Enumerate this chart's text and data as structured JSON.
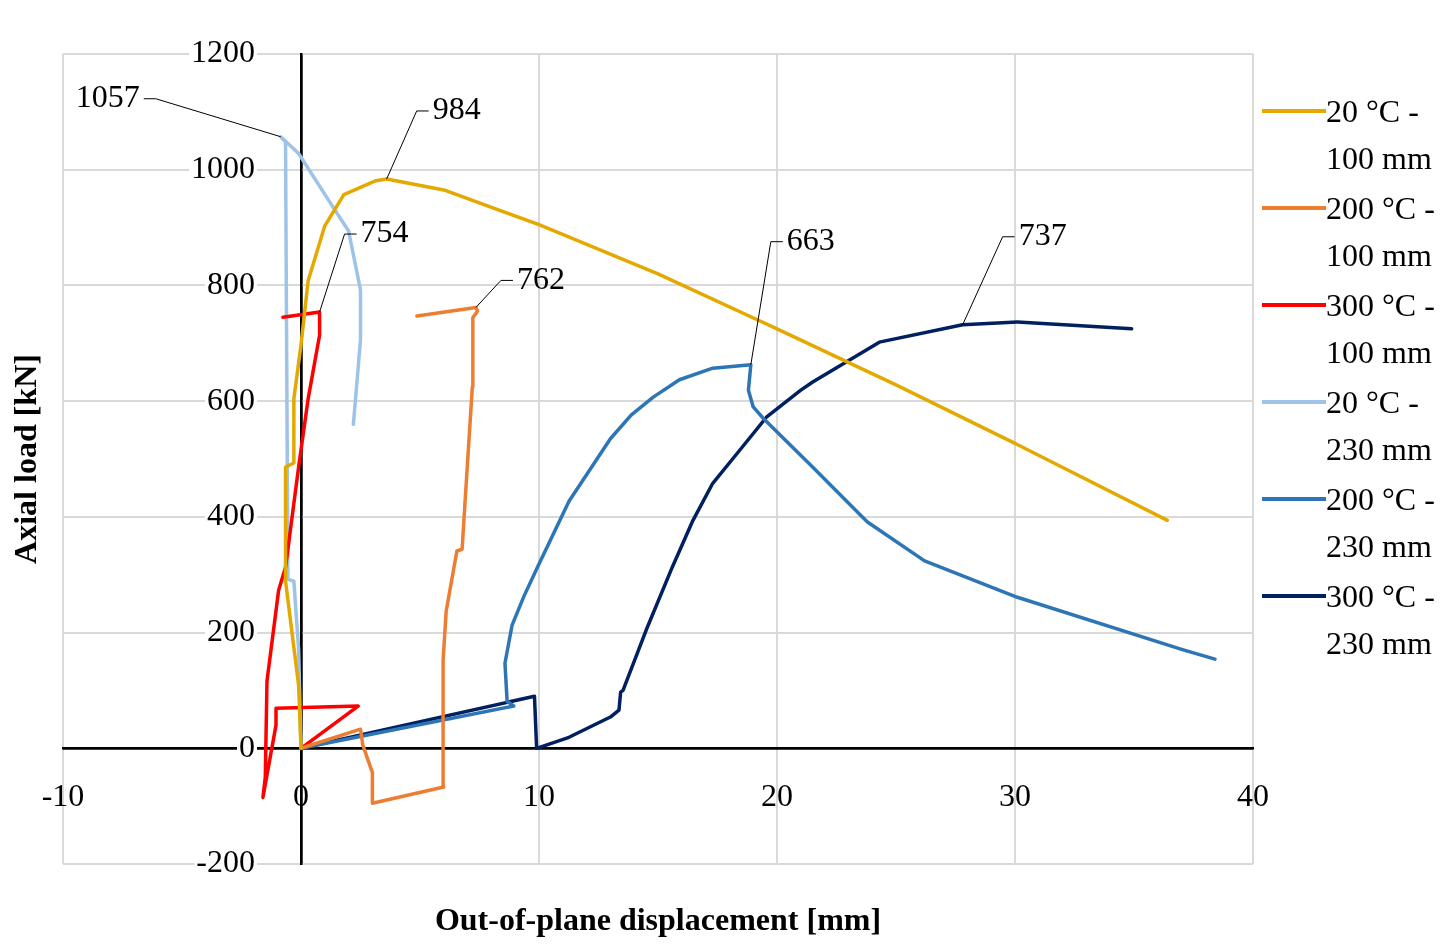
{
  "chart_data": {
    "type": "line",
    "xlabel": "Out-of-plane displacement [mm]",
    "ylabel": "Axial load [kN]",
    "xlim": [
      -10,
      40
    ],
    "xticks": [
      -10,
      0,
      10,
      20,
      30,
      40
    ],
    "ylim": [
      -200,
      1200
    ],
    "yticks": [
      -200,
      0,
      200,
      400,
      600,
      800,
      1000,
      1200
    ],
    "grid": true,
    "legend": "right",
    "marker": "none",
    "line_style": "solid",
    "series": [
      {
        "name": "20 °C - 100 mm",
        "color": "#e3a900",
        "x": [
          0,
          -0.1,
          -0.65,
          -0.65,
          -0.3,
          -0.3,
          0,
          0.3,
          1,
          1.8,
          3.15,
          3.6,
          6,
          10,
          15,
          20,
          25,
          30,
          36.4
        ],
        "values": [
          0,
          109,
          289,
          486,
          493,
          604,
          697,
          808,
          903,
          957,
          981,
          984,
          965,
          905,
          820,
          725,
          628,
          527,
          394
        ]
      },
      {
        "name": "200 °C - 100 mm",
        "color": "#ed7d31",
        "x": [
          0,
          2.5,
          2.6,
          3.0,
          3.0,
          6.0,
          5.97,
          6.1,
          6.55,
          6.77,
          6.85,
          7.2,
          7.22,
          7.42,
          7.35,
          4.87
        ],
        "values": [
          0,
          33,
          5,
          -42,
          -95,
          -67,
          152,
          237,
          341,
          344,
          398,
          625,
          744,
          756,
          762,
          747
        ]
      },
      {
        "name": "300 °C - 100 mm",
        "color": "#ff0000",
        "x": [
          0,
          2.4,
          -1.05,
          -1.05,
          -1.6,
          -1.5,
          -1.43,
          -0.94,
          -0.65,
          -0.1,
          0.3,
          0.78,
          0.78,
          -0.76
        ],
        "values": [
          0,
          73,
          69,
          40,
          -85,
          -50,
          116,
          273,
          313,
          486,
          604,
          714,
          754,
          745
        ]
      },
      {
        "name": "20 °C - 230 mm",
        "color": "#9dc3e6",
        "x": [
          0,
          -0.1,
          -0.3,
          -0.55,
          -0.65,
          -0.85,
          -0.1,
          1.26,
          2.0,
          2.5,
          2.5,
          2.2
        ],
        "values": [
          0,
          171,
          289,
          292,
          1048,
          1057,
          1028,
          941,
          894,
          792,
          706,
          560
        ]
      },
      {
        "name": "200 °C - 230 mm",
        "color": "#2e75b6",
        "x": [
          0,
          8.94,
          8.66,
          8.57,
          8.87,
          9.37,
          9.96,
          11.26,
          12.13,
          13.0,
          13.87,
          14.8,
          15.9,
          17.3,
          18.9,
          18.8,
          19.0,
          19.45,
          21.4,
          23.8,
          26.2,
          30.1,
          37,
          38.4
        ],
        "values": [
          0,
          73,
          81,
          147,
          213,
          263,
          315,
          427,
          481,
          535,
          576,
          607,
          637,
          657,
          663,
          619,
          590,
          569,
          490,
          391,
          324,
          261,
          171,
          154
        ]
      },
      {
        "name": "300 °C - 230 mm",
        "color": "#002060",
        "x": [
          0,
          9.81,
          9.9,
          11.26,
          13.0,
          13.36,
          13.43,
          13.53,
          14.5,
          15.6,
          16.47,
          17.3,
          18.45,
          19.57,
          21.0,
          21.5,
          24.3,
          27.8,
          30.1,
          34.9
        ],
        "values": [
          0,
          90,
          0,
          19,
          54,
          66,
          97,
          100,
          204,
          313,
          394,
          458,
          516,
          573,
          619,
          633,
          702,
          732,
          737,
          725
        ]
      }
    ],
    "annotations": [
      {
        "text": "1057",
        "x": -0.85,
        "y": 1057
      },
      {
        "text": "984",
        "x": 3.6,
        "y": 984
      },
      {
        "text": "754",
        "x": 0.78,
        "y": 754
      },
      {
        "text": "762",
        "x": 7.35,
        "y": 762
      },
      {
        "text": "663",
        "x": 18.9,
        "y": 663
      },
      {
        "text": "737",
        "x": 27.8,
        "y": 732
      }
    ]
  }
}
